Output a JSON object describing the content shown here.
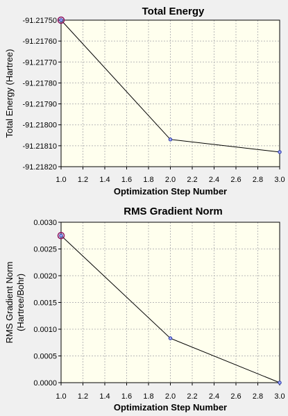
{
  "chart_data": [
    {
      "type": "line",
      "title": "Total Energy",
      "xlabel": "Optimization Step Number",
      "ylabel": "Total Energy (Hartree)",
      "xlim": [
        1.0,
        3.0
      ],
      "ylim": [
        -91.2182,
        -91.2175
      ],
      "xticks": [
        "1.0",
        "1.2",
        "1.4",
        "1.6",
        "1.8",
        "2.0",
        "2.2",
        "2.4",
        "2.6",
        "2.8",
        "3.0"
      ],
      "yticks": [
        "-91.21750",
        "-91.21760",
        "-91.21770",
        "-91.21780",
        "-91.21790",
        "-91.21800",
        "-91.21810",
        "-91.21820"
      ],
      "grid": true,
      "series": [
        {
          "x": [
            1.0,
            2.0,
            3.0
          ],
          "y": [
            -91.2175,
            -91.21807,
            -91.21813
          ]
        }
      ],
      "highlighted_point": 0
    },
    {
      "type": "line",
      "title": "RMS Gradient Norm",
      "xlabel": "Optimization Step Number",
      "ylabel": [
        "RMS Gradient Norm",
        "(Hartree/Bohr)"
      ],
      "xlim": [
        1.0,
        3.0
      ],
      "ylim": [
        0.0,
        0.003
      ],
      "xticks": [
        "1.0",
        "1.2",
        "1.4",
        "1.6",
        "1.8",
        "2.0",
        "2.2",
        "2.4",
        "2.6",
        "2.8",
        "3.0"
      ],
      "yticks": [
        "0.0030",
        "0.0025",
        "0.0020",
        "0.0015",
        "0.0010",
        "0.0005",
        "0.0000"
      ],
      "grid": true,
      "series": [
        {
          "x": [
            1.0,
            2.0,
            3.0
          ],
          "y": [
            0.00275,
            0.00083,
            0.0
          ]
        }
      ],
      "highlighted_point": 0
    }
  ],
  "colors": {
    "background": "#f0f0f0",
    "plot_area": "#ffffee",
    "grid": "#b8b8b8",
    "line": "#000000",
    "marker_fill": "#a0a8ff",
    "marker_stroke": "#2030a0",
    "highlight_ring": "#8b1060"
  }
}
